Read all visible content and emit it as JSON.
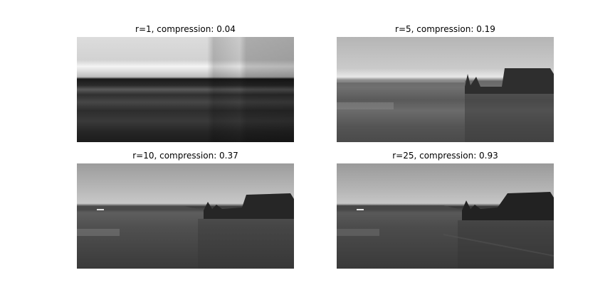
{
  "panels": [
    {
      "title": "r=1, compression: 0.04",
      "rank": 1,
      "compression": 0.04
    },
    {
      "title": "r=5, compression: 0.19",
      "rank": 5,
      "compression": 0.19
    },
    {
      "title": "r=10, compression: 0.37",
      "rank": 10,
      "compression": 0.37
    },
    {
      "title": "r=25, compression: 0.93",
      "rank": 25,
      "compression": 0.93
    }
  ]
}
